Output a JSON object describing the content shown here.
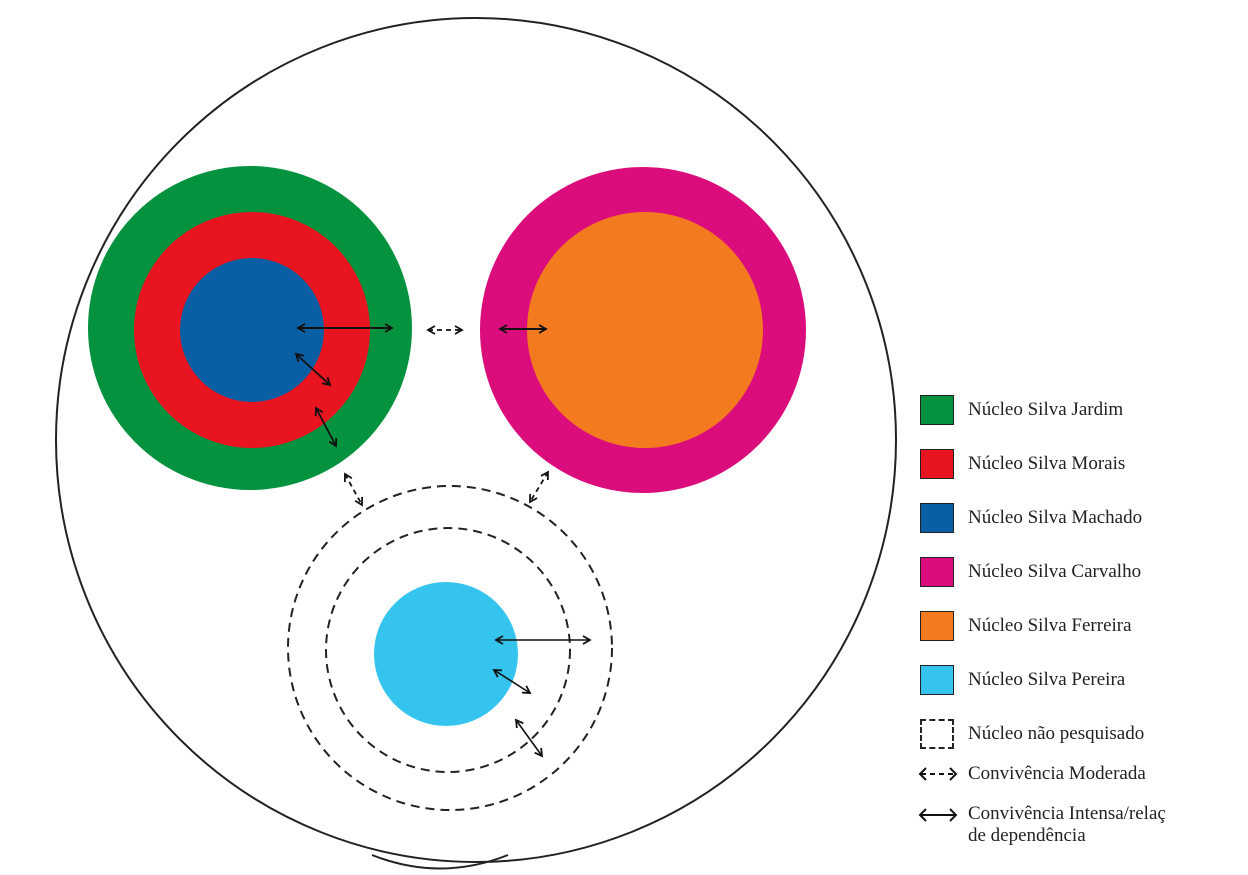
{
  "colors": {
    "jardim": "#05923f",
    "morais": "#e8141f",
    "machado": "#0a5ea3",
    "carvalho": "#db0d7c",
    "ferreira": "#f47a20",
    "pereira": "#35c4ee"
  },
  "legend": {
    "items": [
      {
        "label": "Núcleo Silva Jardim",
        "color": "#05923f"
      },
      {
        "label": "Núcleo Silva Morais",
        "color": "#e8141f"
      },
      {
        "label": "Núcleo Silva Machado",
        "color": "#0a5ea3"
      },
      {
        "label": "Núcleo Silva Carvalho",
        "color": "#db0d7c"
      },
      {
        "label": "Núcleo Silva Ferreira",
        "color": "#f47a20"
      },
      {
        "label": "Núcleo Silva Pereira",
        "color": "#35c4ee"
      }
    ],
    "not_researched": "Núcleo não pesquisado",
    "moderate": "Convivência Moderada",
    "intense_line1": "Convivência Intensa/relaç",
    "intense_line2": "de dependência"
  }
}
